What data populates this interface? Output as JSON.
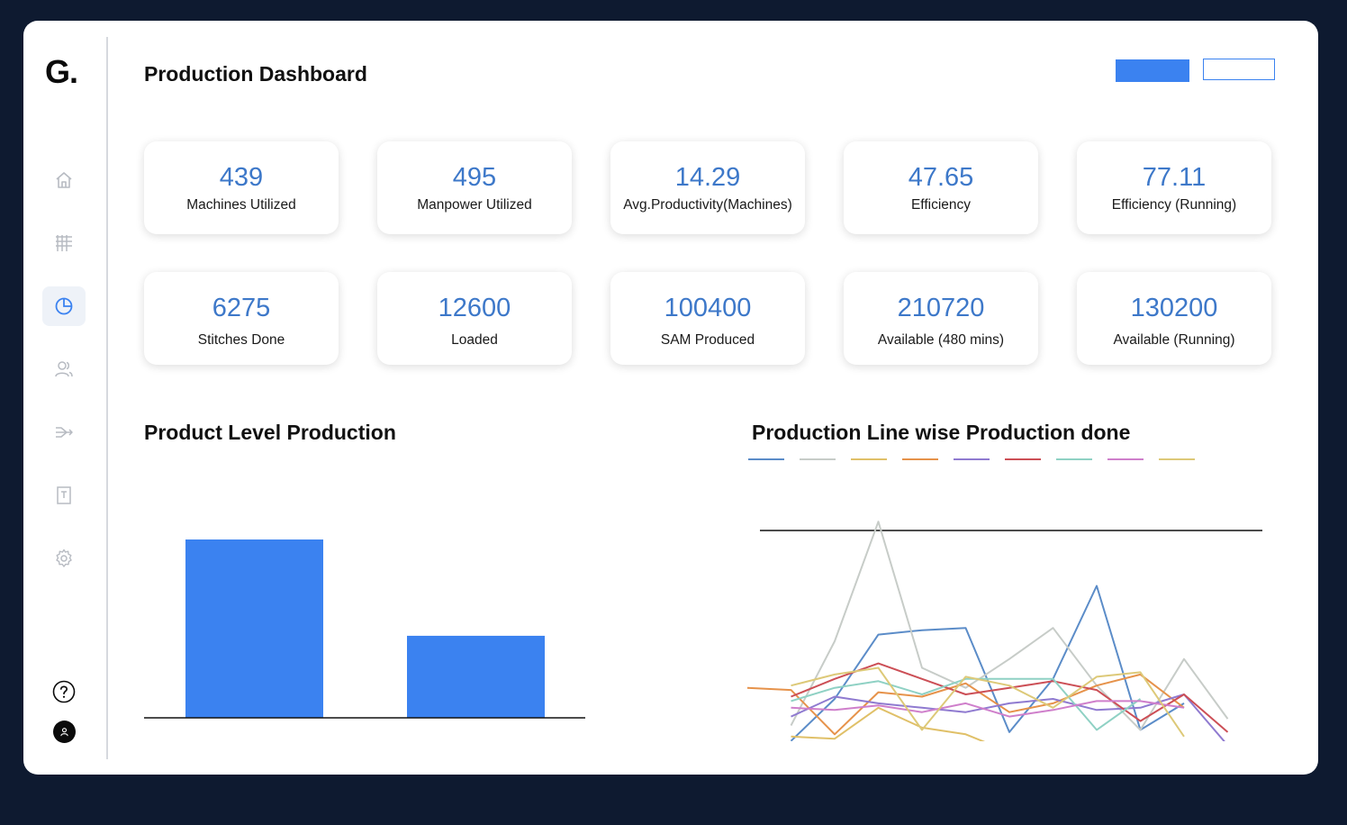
{
  "app": {
    "logo": "G.",
    "title": "Production Dashboard"
  },
  "sidebar": {
    "items": [
      {
        "icon": "home-icon",
        "active": false
      },
      {
        "icon": "grid-icon",
        "active": false
      },
      {
        "icon": "pie-chart-icon",
        "active": true
      },
      {
        "icon": "users-icon",
        "active": false
      },
      {
        "icon": "flow-icon",
        "active": false
      },
      {
        "icon": "text-document-icon",
        "active": false
      },
      {
        "icon": "gear-icon",
        "active": false
      }
    ],
    "help_icon": "help-icon",
    "avatar_icon": "user-icon"
  },
  "header": {
    "primary_button": "",
    "secondary_button": ""
  },
  "stats_row1": [
    {
      "value": "439",
      "label": "Machines Utilized"
    },
    {
      "value": "495",
      "label": "Manpower Utilized"
    },
    {
      "value": "14.29",
      "label": "Avg.Productivity(Machines)"
    },
    {
      "value": "47.65",
      "label": "Efficiency"
    },
    {
      "value": "77.11",
      "label": "Efficiency (Running)"
    }
  ],
  "stats_row2": [
    {
      "value": "6275",
      "label": "Stitches Done"
    },
    {
      "value": "12600",
      "label": "Loaded"
    },
    {
      "value": "100400",
      "label": "SAM Produced"
    },
    {
      "value": "210720",
      "label": "Available (480 mins)"
    },
    {
      "value": "130200",
      "label": "Available (Running)"
    }
  ],
  "colors": {
    "accent": "#3b82f0",
    "value_text": "#3d78c9",
    "background": "#0e1a30"
  },
  "chart_data": [
    {
      "type": "bar",
      "title": "Product Level Production",
      "categories": [
        "",
        ""
      ],
      "values": [
        100,
        46
      ],
      "ylim": [
        0,
        100
      ],
      "color": "#3b82f0"
    },
    {
      "type": "line",
      "title": "Production Line wise Production done",
      "x": [
        0,
        1,
        2,
        3,
        4,
        5,
        6,
        7,
        8,
        9,
        10,
        11,
        12
      ],
      "ylim": [
        0,
        100
      ],
      "series": [
        {
          "color": "#5b8cc8",
          "values": [
            null,
            5,
            24,
            53,
            55,
            56,
            9,
            33,
            75,
            10,
            22,
            null,
            null
          ]
        },
        {
          "color": "#c7ccc8",
          "values": [
            null,
            12,
            50,
            104,
            38,
            29,
            42,
            56,
            30,
            10,
            42,
            15,
            null
          ]
        },
        {
          "color": "#e0c068",
          "values": [
            null,
            7,
            6,
            20,
            11,
            8,
            0,
            0,
            0,
            0,
            0,
            0,
            null
          ]
        },
        {
          "color": "#e6924a",
          "values": [
            29,
            28,
            8,
            27,
            25,
            31,
            18,
            22,
            30,
            35,
            20,
            null,
            null
          ]
        },
        {
          "color": "#8f7ad0",
          "values": [
            null,
            16,
            25,
            22,
            20,
            18,
            22,
            24,
            19,
            20,
            26,
            3,
            null
          ]
        },
        {
          "color": "#cc4f56",
          "values": [
            null,
            25,
            33,
            40,
            33,
            26,
            29,
            32,
            28,
            14,
            26,
            9,
            null
          ]
        },
        {
          "color": "#8fd1c4",
          "values": [
            null,
            23,
            29,
            32,
            26,
            33,
            33,
            33,
            10,
            24,
            null,
            null,
            null
          ]
        },
        {
          "color": "#cf7fcb",
          "values": [
            null,
            20,
            19,
            21,
            18,
            22,
            16,
            19,
            23,
            23,
            20,
            null,
            null
          ]
        },
        {
          "color": "#ddc978",
          "values": [
            null,
            30,
            35,
            38,
            10,
            34,
            30,
            20,
            34,
            36,
            7,
            null,
            null
          ]
        }
      ]
    }
  ]
}
